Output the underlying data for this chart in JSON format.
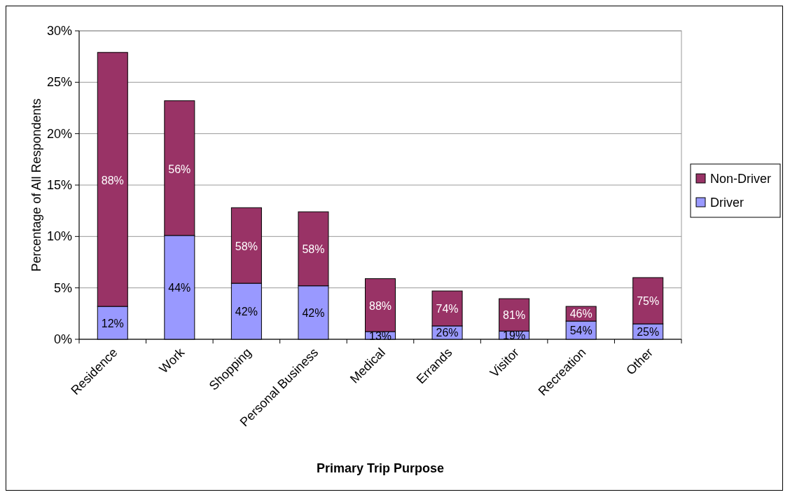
{
  "chart_data": {
    "type": "bar",
    "stacked": true,
    "xlabel": "Primary Trip Purpose",
    "ylabel": "Percentage of All Respondents",
    "categories": [
      "Residence",
      "Work",
      "Shopping",
      "Personal Business",
      "Medical",
      "Errands",
      "Visitor",
      "Recreation",
      "Other"
    ],
    "series": [
      {
        "name": "Driver",
        "color": "#9999ff",
        "values": [
          3.2,
          10.1,
          5.45,
          5.2,
          0.75,
          1.3,
          0.8,
          1.77,
          1.5
        ]
      },
      {
        "name": "Non-Driver",
        "color": "#993366",
        "values": [
          24.7,
          13.1,
          7.35,
          7.2,
          5.15,
          3.4,
          3.15,
          1.43,
          4.5
        ]
      }
    ],
    "annotations": [
      {
        "text": "12%",
        "x": "Residence",
        "y": 1.6
      },
      {
        "text": "44%",
        "x": "Work",
        "y": 5.05
      },
      {
        "text": "42%",
        "x": "Shopping",
        "y": 2.7
      },
      {
        "text": "42%",
        "x": "Personal Business",
        "y": 2.6
      },
      {
        "text": "13%",
        "x": "Medical",
        "y": 0.37
      },
      {
        "text": "26%",
        "x": "Errands",
        "y": 0.65
      },
      {
        "text": "19%",
        "x": "Visitor",
        "y": 0.4
      },
      {
        "text": "54%",
        "x": "Recreation",
        "y": 0.88
      },
      {
        "text": "25%",
        "x": "Other",
        "y": 0.75
      },
      {
        "text": "88%",
        "x": "Residence",
        "y": 15.5
      },
      {
        "text": "56%",
        "x": "Work",
        "y": 16.6
      },
      {
        "text": "58%",
        "x": "Shopping",
        "y": 9.1
      },
      {
        "text": "58%",
        "x": "Personal Business",
        "y": 8.8
      },
      {
        "text": "88%",
        "x": "Medical",
        "y": 3.3
      },
      {
        "text": "74%",
        "x": "Errands",
        "y": 3.0
      },
      {
        "text": "81%",
        "x": "Visitor",
        "y": 2.4
      },
      {
        "text": "46%",
        "x": "Recreation",
        "y": 2.5
      },
      {
        "text": "75%",
        "x": "Other",
        "y": 3.75
      }
    ],
    "ylim": [
      0,
      30
    ],
    "yticks": [
      {
        "value": 0,
        "label": "0%"
      },
      {
        "value": 5,
        "label": "5%"
      },
      {
        "value": 10,
        "label": "10%"
      },
      {
        "value": 15,
        "label": "15%"
      },
      {
        "value": 20,
        "label": "20%"
      },
      {
        "value": 25,
        "label": "25%"
      },
      {
        "value": 30,
        "label": "30%"
      }
    ],
    "grid": "y",
    "legend": "right"
  }
}
